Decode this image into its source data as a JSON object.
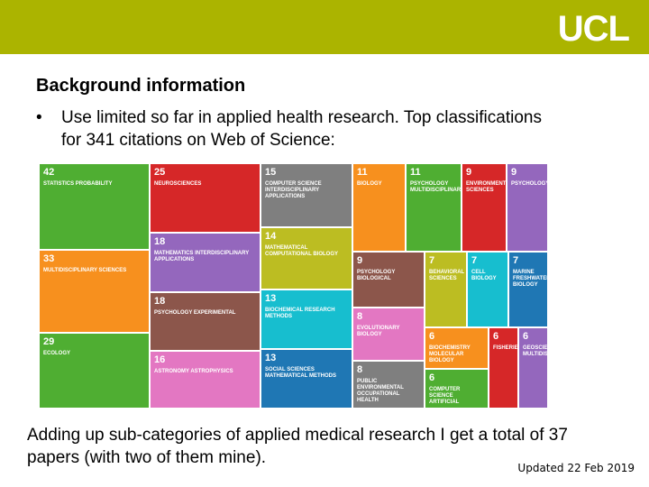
{
  "header": {
    "logo": "UCL"
  },
  "title": "Background information",
  "bullets": [
    "Use limited so far in applied health research. Top classifications for 341 citations on Web of Science:"
  ],
  "treemap": {
    "tiles": [
      {
        "count": "42",
        "label": "STATISTICS PROBABILITY",
        "color": "#4fae32"
      },
      {
        "count": "33",
        "label": "MULTIDISCIPLINARY SCIENCES",
        "color": "#f7901e"
      },
      {
        "count": "29",
        "label": "ECOLOGY",
        "color": "#4fae32"
      },
      {
        "count": "25",
        "label": "NEUROSCIENCES",
        "color": "#d62728"
      },
      {
        "count": "18",
        "label": "MATHEMATICS INTERDISCIPLINARY APPLICATIONS",
        "color": "#9467bd"
      },
      {
        "count": "18",
        "label": "PSYCHOLOGY EXPERIMENTAL",
        "color": "#8c564b"
      },
      {
        "count": "16",
        "label": "ASTRONOMY ASTROPHYSICS",
        "color": "#e377c2"
      },
      {
        "count": "15",
        "label": "COMPUTER SCIENCE INTERDISCIPLINARY APPLICATIONS",
        "color": "#7f7f7f"
      },
      {
        "count": "14",
        "label": "MATHEMATICAL COMPUTATIONAL BIOLOGY",
        "color": "#bcbd22"
      },
      {
        "count": "13",
        "label": "BIOCHEMICAL RESEARCH METHODS",
        "color": "#17becf"
      },
      {
        "count": "13",
        "label": "SOCIAL SCIENCES MATHEMATICAL METHODS",
        "color": "#1f77b4"
      },
      {
        "count": "11",
        "label": "BIOLOGY",
        "color": "#f7901e"
      },
      {
        "count": "11",
        "label": "PSYCHOLOGY MULTIDISCIPLINARY",
        "color": "#4fae32"
      },
      {
        "count": "9",
        "label": "ENVIRONMENTAL SCIENCES",
        "color": "#d62728"
      },
      {
        "count": "9",
        "label": "PSYCHOLOGY",
        "color": "#9467bd"
      },
      {
        "count": "9",
        "label": "PSYCHOLOGY BIOLOGICAL",
        "color": "#8c564b"
      },
      {
        "count": "8",
        "label": "EVOLUTIONARY BIOLOGY",
        "color": "#e377c2"
      },
      {
        "count": "8",
        "label": "PUBLIC ENVIRONMENTAL OCCUPATIONAL HEALTH",
        "color": "#7f7f7f"
      },
      {
        "count": "7",
        "label": "BEHAVIORAL SCIENCES",
        "color": "#bcbd22"
      },
      {
        "count": "7",
        "label": "CELL BIOLOGY",
        "color": "#17becf"
      },
      {
        "count": "7",
        "label": "MARINE FRESHWATER BIOLOGY",
        "color": "#1f77b4"
      },
      {
        "count": "6",
        "label": "BIOCHEMISTRY MOLECULAR BIOLOGY",
        "color": "#f7901e"
      },
      {
        "count": "6",
        "label": "COMPUTER SCIENCE ARTIFICIAL",
        "color": "#4fae32"
      },
      {
        "count": "6",
        "label": "FISHERIES",
        "color": "#d62728"
      },
      {
        "count": "6",
        "label": "GEOSCIENCES MULTIDISCIPLINARY",
        "color": "#9467bd"
      }
    ]
  },
  "body": "Adding up sub-categories of applied medical research I get a total of 37 papers (with two of them mine).",
  "footer": "Updated 22 Feb 2019"
}
